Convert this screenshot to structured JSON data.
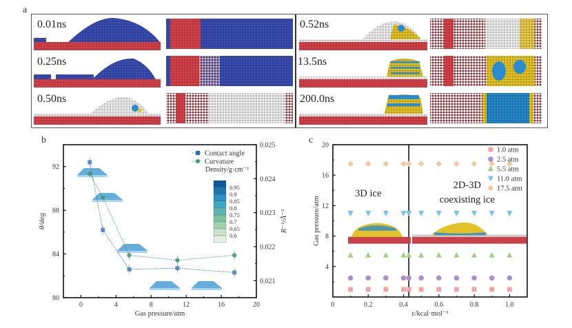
{
  "figure": {
    "panel_a": {
      "letter": "a",
      "left_column_times": [
        "0.01ns",
        "0.25ns",
        "0.50ns"
      ],
      "right_column_times": [
        "0.52ns",
        "13.5ns",
        "200.0ns"
      ],
      "colors": {
        "substrate": "#d2454a",
        "liquid": "#3c4fb0",
        "ice_yellow": "#e7c62c",
        "ice_blue": "#2a8ccc",
        "gas_white": "#e4e4e4",
        "dark_red": "#7a2a32"
      }
    },
    "panel_b_letter": "b",
    "panel_c_letter": "c"
  },
  "chart_data": [
    {
      "panel": "b",
      "type": "line",
      "title": "",
      "xlabel": "Gas pressure/atm",
      "ylabel": "θ/deg",
      "y2label": "R⁻¹/Å⁻¹",
      "xlim": [
        -2,
        20
      ],
      "ylim": [
        80,
        94
      ],
      "y2lim": [
        0.0205,
        0.025
      ],
      "xticks": [
        "0",
        "4",
        "8",
        "12",
        "16",
        "20"
      ],
      "yticks": [
        "80",
        "84",
        "88",
        "92"
      ],
      "y2ticks": [
        "0.021",
        "0.022",
        "0.023",
        "0.024",
        "0.025"
      ],
      "x": [
        1.0,
        2.5,
        5.5,
        11.0,
        17.5
      ],
      "series": [
        {
          "name": "Contact angle",
          "axis": "left",
          "color": "#2f6fb0",
          "values": [
            92.4,
            86.2,
            82.6,
            82.7,
            82.3
          ]
        },
        {
          "name": "Curvature",
          "axis": "right",
          "color": "#3a9a6a",
          "values": [
            0.02415,
            0.02345,
            0.02175,
            0.0216,
            0.02175
          ]
        }
      ],
      "legend": {
        "position": "top-right",
        "entries": [
          "Contact angle",
          "Curvature"
        ]
      },
      "colorbar": {
        "title": "Density/g·cm⁻³",
        "ticks": [
          "0.95",
          "0.9",
          "0.85",
          "0.8",
          "0.75",
          "0.7",
          "0.65",
          "0.6"
        ],
        "colors": [
          "#0b5a94",
          "#1a75ad",
          "#2b92c1",
          "#3ea8bf",
          "#5bb5b0",
          "#7cc29f",
          "#a3d3a8",
          "#c9e4c6",
          "#e6f0e4"
        ]
      },
      "droplet_icon_x": [
        1.0,
        2.5,
        5.5,
        11.0,
        17.5
      ]
    },
    {
      "panel": "c",
      "type": "scatter",
      "title": "",
      "xlabel": "ε/kcal·mol⁻¹",
      "ylabel": "Gas pressure/atm",
      "xlim": [
        0,
        1.1
      ],
      "ylim": [
        0,
        20
      ],
      "xticks": [
        "0",
        "0.2",
        "0.4",
        "0.6",
        "0.8",
        "1.0"
      ],
      "yticks": [
        "4",
        "8",
        "12",
        "16",
        "20"
      ],
      "boundary_x": 0.43,
      "x": [
        0.1,
        0.2,
        0.3,
        0.4,
        0.43,
        0.5,
        0.6,
        0.7,
        0.8,
        0.9,
        1.0
      ],
      "series": [
        {
          "name": "1.0 atm",
          "marker": "square",
          "color": "#f0a3a8",
          "y": 1.0
        },
        {
          "name": "2.5 atm",
          "marker": "circle",
          "color": "#a88fd0",
          "y": 2.5
        },
        {
          "name": "5.5 atm",
          "marker": "triangle-up",
          "color": "#9fd07e",
          "y": 5.5
        },
        {
          "name": "11.0 atm",
          "marker": "triangle-down",
          "color": "#74c2ea",
          "y": 11.0
        },
        {
          "name": "17.5 atm",
          "marker": "diamond",
          "color": "#f0c99e",
          "y": 17.5
        }
      ],
      "region_labels": [
        {
          "text": "3D  ice",
          "x": 0.2,
          "y": 13.2
        },
        {
          "text": "2D-3D",
          "x": 0.76,
          "y": 14.3
        },
        {
          "text": "coexisting ice",
          "x": 0.76,
          "y": 12.4
        }
      ],
      "legend": {
        "position": "top-right",
        "entries": [
          "1.0 atm",
          "2.5 atm",
          "5.5 atm",
          "11.0 atm",
          "17.5 atm"
        ]
      }
    }
  ]
}
